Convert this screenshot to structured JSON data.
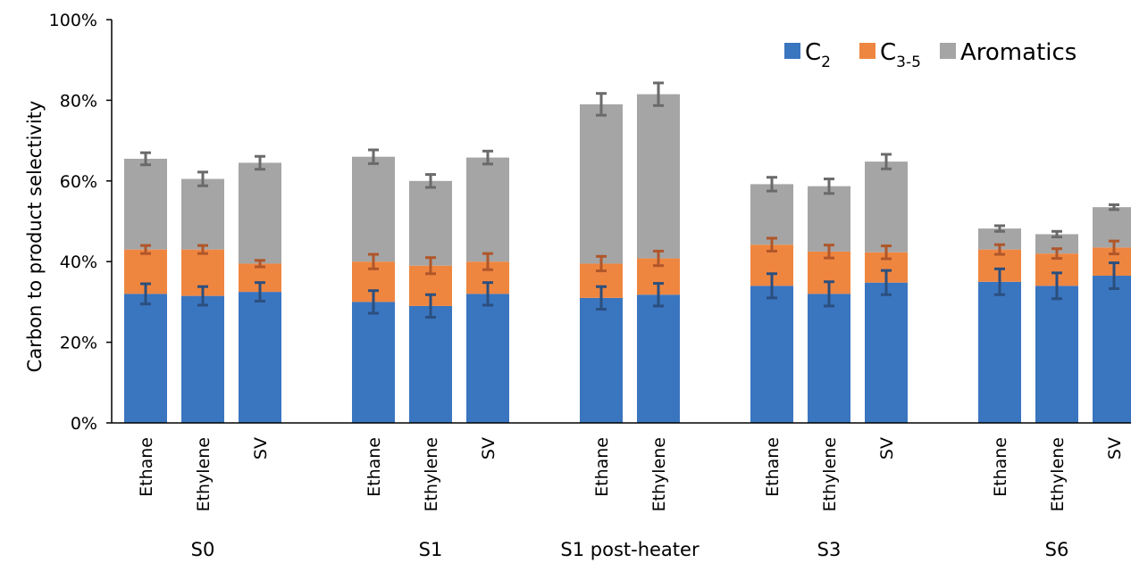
{
  "chart_data": {
    "type": "bar",
    "stacked": true,
    "ylabel": "Carbon to product selectivity",
    "ylim": [
      0,
      100
    ],
    "y_ticks": [
      "0%",
      "20%",
      "40%",
      "60%",
      "80%",
      "100%"
    ],
    "grid": false,
    "legend_position": "top-right",
    "groups": [
      {
        "name": "S0",
        "categories": [
          "Ethane",
          "Ethylene",
          "SV"
        ]
      },
      {
        "name": "S1",
        "categories": [
          "Ethane",
          "Ethylene",
          "SV"
        ]
      },
      {
        "name": "S1 post-heater",
        "categories": [
          "Ethane",
          "Ethylene"
        ]
      },
      {
        "name": "S3",
        "categories": [
          "Ethane",
          "Ethylene",
          "SV"
        ]
      },
      {
        "name": "S6",
        "categories": [
          "Ethane",
          "Ethylene",
          "SV"
        ]
      }
    ],
    "series": [
      {
        "name": "C2",
        "name_main": "C",
        "name_sub": "2",
        "color": "#3a75c0",
        "values": [
          32,
          31.5,
          32.5,
          30,
          29,
          32,
          31,
          31.8,
          34,
          32,
          34.8,
          35,
          34,
          36.5
        ],
        "errors": [
          2.5,
          2.3,
          2.3,
          2.8,
          2.8,
          2.8,
          2.8,
          2.8,
          3,
          3,
          3,
          3.2,
          3.2,
          3.2
        ]
      },
      {
        "name": "C3-5",
        "name_main": "C",
        "name_sub": "3-5",
        "color": "#ef8640",
        "values": [
          11,
          11.5,
          7,
          10,
          10,
          8,
          8.5,
          9,
          10.2,
          10.5,
          7.5,
          8,
          8,
          7
        ],
        "errors": [
          1,
          1,
          0.8,
          1.8,
          2,
          2,
          1.8,
          1.8,
          1.6,
          1.6,
          1.6,
          1.2,
          1.2,
          1.6
        ]
      },
      {
        "name": "Aromatics",
        "color": "#a5a5a5",
        "values": [
          22.5,
          17.5,
          25,
          26,
          21,
          25.8,
          39.5,
          40.7,
          15,
          16.2,
          22.5,
          5.2,
          4.8,
          10
        ],
        "errors": [
          1.5,
          1.7,
          1.6,
          1.7,
          1.6,
          1.6,
          2.7,
          2.8,
          1.7,
          1.8,
          1.8,
          0.7,
          0.7,
          0.6
        ]
      }
    ]
  }
}
